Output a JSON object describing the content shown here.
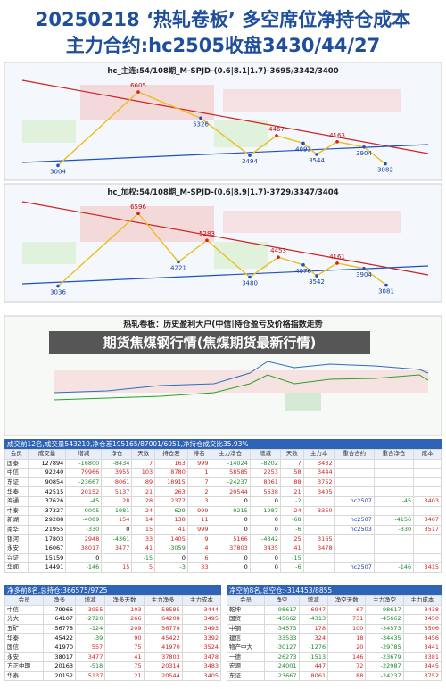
{
  "header": {
    "line1": "20250218 ‘热轧卷板’ 多空席位净持仓成本",
    "line2": "主力合约:hc2505收盘3430/44/27"
  },
  "charts": [
    {
      "title": "hc_主连:54/108期_M-SPJD-(0.6|8.1|1.7)-3695/3342/3400",
      "points": [
        3004,
        6605,
        5326,
        3494,
        4467,
        4093,
        3544,
        4163,
        3904,
        3082
      ]
    },
    {
      "title": "hc_加权:54/108期_M-SPJD-(0.6|8.9|1.7)-3729/3347/3404",
      "points": [
        3036,
        6596,
        4221,
        5283,
        3480,
        4453,
        4076,
        3542,
        4161,
        3904,
        3081
      ]
    }
  ],
  "chart3": {
    "title": "热轧卷板：历史盈利大户(中信|持仓盈亏及价格指数走势",
    "overlay": "期货焦煤钢行情(焦煤期货最新行情)"
  },
  "table1": {
    "caption": "成交前12名,成交量543219,净仓差195165/87001/6051,净持仓成交比35.93%",
    "columns": [
      "会员",
      "成交量",
      "增减",
      "净仓",
      "天数",
      "持仓差",
      "排名",
      "主力净仓",
      "增减",
      "天数",
      "主力本",
      "重合合约",
      "重合净仓",
      "成本"
    ],
    "rows": [
      [
        "国泰",
        127894,
        -16800,
        -8434,
        7,
        163,
        999,
        -14024,
        -8202,
        7,
        3432
      ],
      [
        "中信",
        92240,
        79966,
        3955,
        103,
        8780,
        1,
        58585,
        2253,
        58,
        3444
      ],
      [
        "东证",
        90854,
        -23667,
        8061,
        89,
        18915,
        7,
        -24237,
        8061,
        88,
        3752
      ],
      [
        "华泰",
        42515,
        20152,
        5137,
        21,
        263,
        2,
        20544,
        5638,
        21,
        3405
      ],
      [
        "海通",
        37626,
        -45,
        28,
        28,
        2377,
        3,
        0,
        0,
        -2,
        null,
        "hc2507",
        -45,
        3403
      ],
      [
        "中泰",
        37327,
        -9005,
        -1981,
        24,
        -629,
        999,
        -9215,
        -1987,
        24,
        3350
      ],
      [
        "新湖",
        29288,
        -4089,
        154,
        14,
        138,
        11,
        0,
        0,
        -68,
        null,
        "hc2507",
        -4156,
        3467
      ],
      [
        "南华",
        21955,
        -330,
        0,
        15,
        41,
        999,
        0,
        0,
        -6,
        null,
        "hc2503",
        -330,
        3517
      ],
      [
        "银河",
        17803,
        2948,
        -4361,
        33,
        1405,
        9,
        5166,
        -4342,
        25,
        3165
      ],
      [
        "永安",
        16067,
        38017,
        3477,
        41,
        -3059,
        4,
        37803,
        3435,
        41,
        3478
      ],
      [
        "兴证",
        15159,
        0,
        null,
        -15,
        0,
        6,
        0,
        0,
        -15
      ],
      [
        "华闻",
        14491,
        -146,
        15,
        5,
        -3,
        33,
        0,
        0,
        -6,
        null,
        "hc2507",
        -146,
        3415
      ]
    ]
  },
  "table2": {
    "caption": "净多前8名,总持仓:366575/9725",
    "columns": [
      "会员",
      "净多",
      "增减",
      "净多天数",
      "主力净多",
      "主力成本"
    ],
    "rows": [
      [
        "中信",
        79966,
        3955,
        103,
        58585,
        3444
      ],
      [
        "光大",
        64107,
        -2720,
        266,
        64208,
        3495
      ],
      [
        "五矿",
        56778,
        -124,
        209,
        56778,
        3493
      ],
      [
        "华泰",
        45422,
        -39,
        90,
        45422,
        3392
      ],
      [
        "国信",
        41970,
        557,
        75,
        41970,
        3524
      ],
      [
        "永安",
        38017,
        3477,
        41,
        37803,
        3478
      ],
      [
        "方正中期",
        20163,
        -518,
        75,
        20314,
        3483
      ],
      [
        "华泰",
        20152,
        5137,
        21,
        20544,
        3405
      ]
    ]
  },
  "table3": {
    "caption": "净空前8名,总空仓:-314453/8855",
    "columns": [
      "会员",
      "净空",
      "增减",
      "净空天数",
      "主力净空",
      "主力成本"
    ],
    "rows": [
      [
        "乾坤",
        -98617,
        6947,
        67,
        -98617,
        3438
      ],
      [
        "国贸",
        -45662,
        -4313,
        731,
        -45662,
        3450
      ],
      [
        "中钢",
        -34573,
        178,
        100,
        -34573,
        3506
      ],
      [
        "建信",
        -33533,
        324,
        18,
        -34435,
        3456
      ],
      [
        "物产中大",
        -30127,
        -1276,
        20,
        -29785,
        3441
      ],
      [
        "一德",
        -26273,
        -1513,
        146,
        -23679,
        3381
      ],
      [
        "宏源",
        -24001,
        447,
        72,
        -22987,
        3445
      ],
      [
        "东证",
        -23667,
        8061,
        88,
        -24237,
        3752
      ]
    ]
  }
}
